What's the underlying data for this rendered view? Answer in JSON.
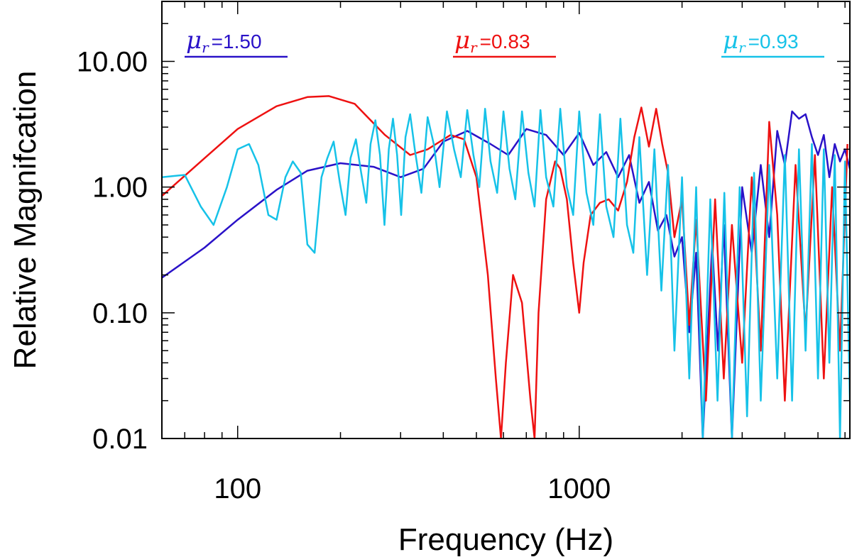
{
  "chart_data": {
    "type": "line",
    "title": "",
    "xlabel": "Frequency (Hz)",
    "ylabel": "Relative Magnifcation",
    "xscale": "log",
    "yscale": "log",
    "xlim": [
      60,
      6200
    ],
    "ylim": [
      0.01,
      30
    ],
    "x_ticks": [
      {
        "value": 100,
        "label": "100"
      },
      {
        "value": 1000,
        "label": "1000"
      }
    ],
    "y_ticks": [
      {
        "value": 10,
        "label": "10.00"
      },
      {
        "value": 1,
        "label": "1.00"
      },
      {
        "value": 0.1,
        "label": "0.10"
      },
      {
        "value": 0.01,
        "label": "0.01"
      }
    ],
    "grid": false,
    "legend_position": "top",
    "series": [
      {
        "name": "mu_r=1.50",
        "legend_symbol": "μ",
        "legend_sub": "r",
        "legend_value": "=1.50",
        "color": "#2a12c8",
        "x": [
          60,
          80,
          100,
          130,
          160,
          200,
          250,
          300,
          350,
          400,
          470,
          550,
          620,
          700,
          800,
          900,
          1000,
          1100,
          1200,
          1300,
          1400,
          1500,
          1600,
          1700,
          1800,
          1900,
          2000,
          2100,
          2200,
          2300,
          2450,
          2550,
          2650,
          2800,
          3000,
          3200,
          3400,
          3600,
          3800,
          4000,
          4200,
          4400,
          4600,
          4800,
          5000,
          5200,
          5400,
          5600,
          5800,
          6000,
          6200
        ],
        "y": [
          0.19,
          0.33,
          0.55,
          0.95,
          1.35,
          1.55,
          1.45,
          1.2,
          1.4,
          2.3,
          2.8,
          2.2,
          1.8,
          2.9,
          2.6,
          1.8,
          2.7,
          1.5,
          1.9,
          1.2,
          1.8,
          0.75,
          1.1,
          0.45,
          0.6,
          0.28,
          0.4,
          0.07,
          0.3,
          0.01,
          0.35,
          0.05,
          0.5,
          0.01,
          1.0,
          0.3,
          1.5,
          0.4,
          2.8,
          1.5,
          4.0,
          3.5,
          3.8,
          2.5,
          1.8,
          2.6,
          1.2,
          2.2,
          1.6,
          2.0,
          1.4
        ]
      },
      {
        "name": "mu_r=0.83",
        "legend_symbol": "μ",
        "legend_sub": "r",
        "legend_value": "=0.83",
        "color": "#ee1111",
        "x": [
          60,
          80,
          100,
          130,
          160,
          185,
          220,
          270,
          320,
          360,
          420,
          460,
          500,
          540,
          570,
          590,
          610,
          640,
          680,
          720,
          740,
          760,
          800,
          850,
          880,
          920,
          960,
          1000,
          1030,
          1080,
          1150,
          1220,
          1300,
          1380,
          1450,
          1520,
          1600,
          1680,
          1750,
          1820,
          1900,
          2000,
          2100,
          2200,
          2350,
          2500,
          2650,
          2800,
          3000,
          3200,
          3400,
          3600,
          3800,
          4000,
          4300,
          4600,
          4900,
          5200,
          5500,
          5800,
          6100
        ],
        "y": [
          0.85,
          1.7,
          2.9,
          4.4,
          5.2,
          5.3,
          4.6,
          2.6,
          1.8,
          2.0,
          2.6,
          2.4,
          1.2,
          0.2,
          0.03,
          0.01,
          0.04,
          0.2,
          0.12,
          0.02,
          0.01,
          0.1,
          0.8,
          1.6,
          1.4,
          0.8,
          0.25,
          0.1,
          0.25,
          0.6,
          0.75,
          0.8,
          0.65,
          1.1,
          2.5,
          4.3,
          2.1,
          4.2,
          2.2,
          1.3,
          0.4,
          0.8,
          0.08,
          0.55,
          0.02,
          0.8,
          0.03,
          0.5,
          0.04,
          1.2,
          0.05,
          3.3,
          0.6,
          0.02,
          1.5,
          0.07,
          1.8,
          0.03,
          1.0,
          0.05,
          2.2
        ]
      },
      {
        "name": "mu_r=0.93",
        "legend_symbol": "μ",
        "legend_sub": "r",
        "legend_value": "=0.93",
        "color": "#16c2e8",
        "x": [
          60,
          70,
          78,
          85,
          93,
          100,
          108,
          115,
          123,
          130,
          138,
          145,
          153,
          160,
          168,
          176,
          183,
          191,
          199,
          207,
          214,
          222,
          230,
          238,
          245,
          253,
          261,
          269,
          277,
          285,
          293,
          301,
          310,
          320,
          330,
          345,
          360,
          375,
          390,
          410,
          430,
          450,
          470,
          490,
          510,
          530,
          550,
          575,
          600,
          625,
          650,
          680,
          710,
          740,
          770,
          800,
          840,
          880,
          920,
          960,
          1000,
          1050,
          1100,
          1150,
          1200,
          1260,
          1320,
          1380,
          1440,
          1500,
          1580,
          1660,
          1740,
          1820,
          1900,
          2000,
          2100,
          2200,
          2300,
          2420,
          2540,
          2660,
          2800,
          2950,
          3100,
          3250,
          3400,
          3600,
          3800,
          4000,
          4200,
          4400,
          4600,
          4800,
          5000,
          5200,
          5400,
          5600,
          5800,
          6000,
          6200
        ],
        "y": [
          1.2,
          1.25,
          0.7,
          0.5,
          1.0,
          2.0,
          2.2,
          1.5,
          0.6,
          0.55,
          1.2,
          1.6,
          1.3,
          0.35,
          0.3,
          1.2,
          1.7,
          2.3,
          1.1,
          0.6,
          1.7,
          2.4,
          1.3,
          0.75,
          2.2,
          3.4,
          1.8,
          0.5,
          2.0,
          3.5,
          1.8,
          0.6,
          2.5,
          3.8,
          2.0,
          0.9,
          3.6,
          2.2,
          1.0,
          4.0,
          2.0,
          1.2,
          4.1,
          1.8,
          1.0,
          4.2,
          1.6,
          0.9,
          4.0,
          1.4,
          0.8,
          4.0,
          1.3,
          0.7,
          4.1,
          1.2,
          0.7,
          4.2,
          1.0,
          0.6,
          4.0,
          0.9,
          0.5,
          3.8,
          0.7,
          0.4,
          3.5,
          0.5,
          0.3,
          2.5,
          0.2,
          2.0,
          0.15,
          1.5,
          0.05,
          1.2,
          0.03,
          1.0,
          0.01,
          0.8,
          0.02,
          0.9,
          0.01,
          1.0,
          0.015,
          1.3,
          0.02,
          1.5,
          0.03,
          1.8,
          0.02,
          2.0,
          0.05,
          2.2,
          0.03,
          2.0,
          0.04,
          1.8,
          0.01,
          1.6,
          0.02
        ]
      }
    ]
  }
}
